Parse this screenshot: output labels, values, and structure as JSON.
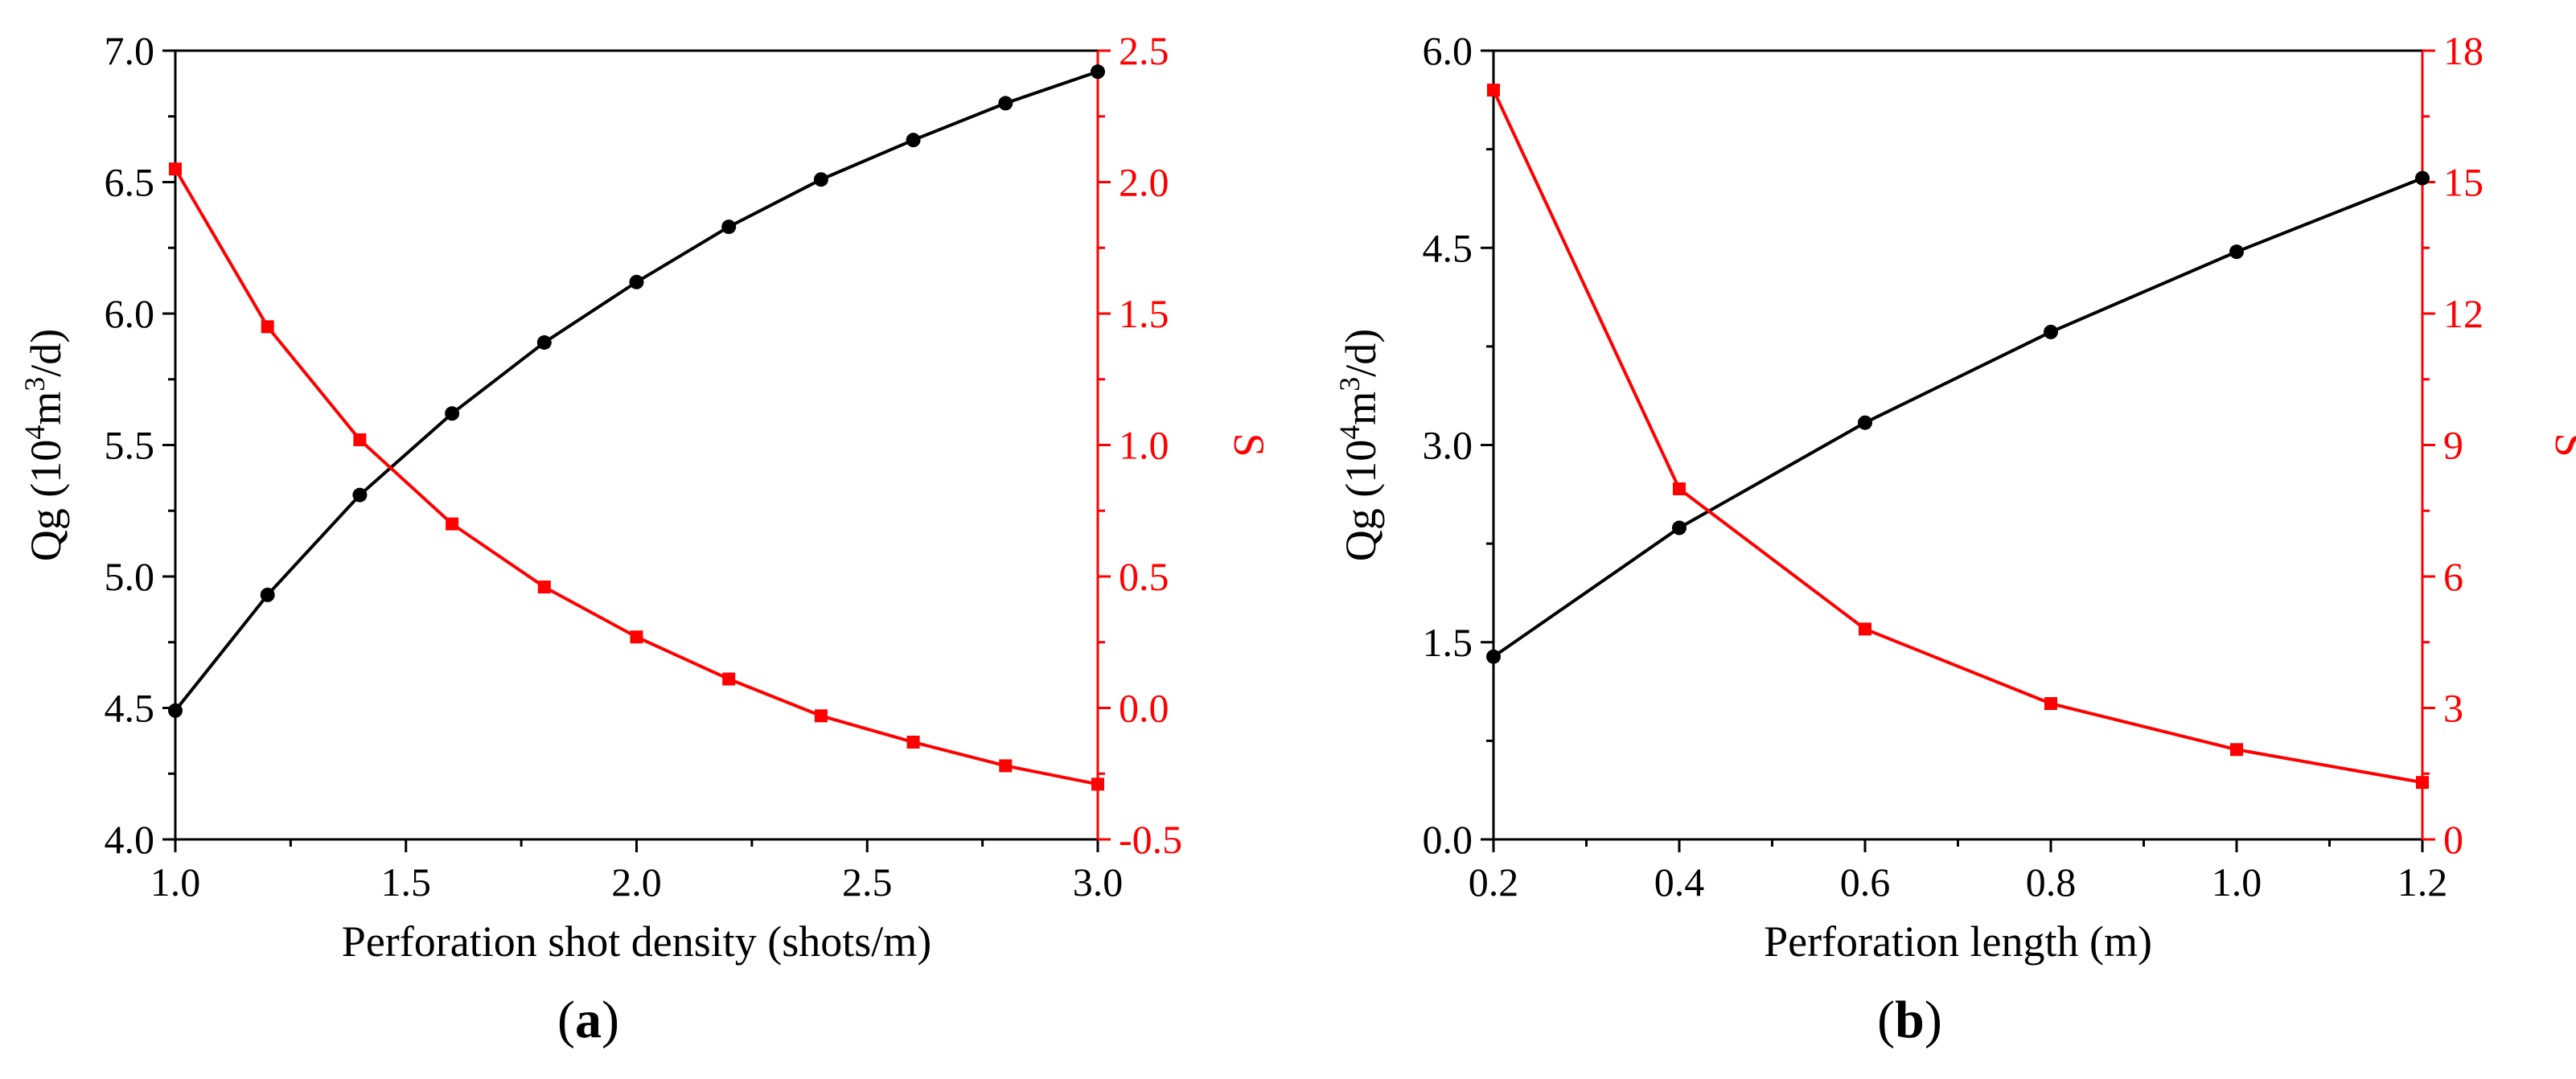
{
  "colors": {
    "left_series": "#000000",
    "right_series": "#ff0000",
    "axes": "#000000"
  },
  "chart_data": [
    {
      "type": "line",
      "panel_label": {
        "open": "(",
        "letter": "a",
        "close": ")"
      },
      "xlabel": "Perforation shot density (shots/m)",
      "ylabel_left": {
        "prefix": "Qg (10",
        "sup1": "4",
        "mid": "m",
        "sup2": "3",
        "suffix": "/d)"
      },
      "ylabel_right": "S",
      "xlim": [
        1.0,
        3.0
      ],
      "xticks": [
        "1.0",
        "1.5",
        "2.0",
        "2.5",
        "3.0"
      ],
      "ylim_left": [
        4.0,
        7.0
      ],
      "yticks_left": [
        "4.0",
        "4.5",
        "5.0",
        "5.5",
        "6.0",
        "6.5",
        "7.0"
      ],
      "ylim_right": [
        -0.5,
        2.5
      ],
      "yticks_right": [
        "-0.5",
        "0.0",
        "0.5",
        "1.0",
        "1.5",
        "2.0",
        "2.5"
      ],
      "x": [
        1.0,
        1.2,
        1.4,
        1.6,
        1.8,
        2.0,
        2.2,
        2.4,
        2.6,
        2.8,
        3.0
      ],
      "series": [
        {
          "name": "Qg",
          "axis": "left",
          "marker": "circle",
          "values": [
            4.49,
            4.93,
            5.31,
            5.62,
            5.89,
            6.12,
            6.33,
            6.51,
            6.66,
            6.8,
            6.92
          ]
        },
        {
          "name": "S",
          "axis": "right",
          "marker": "square",
          "values": [
            2.05,
            1.45,
            1.02,
            0.7,
            0.46,
            0.27,
            0.11,
            -0.03,
            -0.13,
            -0.22,
            -0.29
          ]
        }
      ]
    },
    {
      "type": "line",
      "panel_label": {
        "open": "(",
        "letter": "b",
        "close": ")"
      },
      "xlabel": "Perforation length (m)",
      "ylabel_left": {
        "prefix": "Qg (10",
        "sup1": "4",
        "mid": "m",
        "sup2": "3",
        "suffix": "/d)"
      },
      "ylabel_right": "S",
      "xlim": [
        0.2,
        1.2
      ],
      "xticks": [
        "0.2",
        "0.4",
        "0.6",
        "0.8",
        "1.0",
        "1.2"
      ],
      "ylim_left": [
        0.0,
        6.0
      ],
      "yticks_left": [
        "0.0",
        "1.5",
        "3.0",
        "4.5",
        "6.0"
      ],
      "ylim_right": [
        0,
        18
      ],
      "yticks_right": [
        "0",
        "3",
        "6",
        "9",
        "12",
        "15",
        "18"
      ],
      "x": [
        0.2,
        0.4,
        0.6,
        0.8,
        1.0,
        1.2
      ],
      "series": [
        {
          "name": "Qg",
          "axis": "left",
          "marker": "circle",
          "values": [
            1.39,
            2.37,
            3.17,
            3.86,
            4.47,
            5.03
          ]
        },
        {
          "name": "S",
          "axis": "right",
          "marker": "square",
          "values": [
            17.1,
            8.0,
            4.8,
            3.1,
            2.05,
            1.3
          ]
        }
      ]
    }
  ]
}
